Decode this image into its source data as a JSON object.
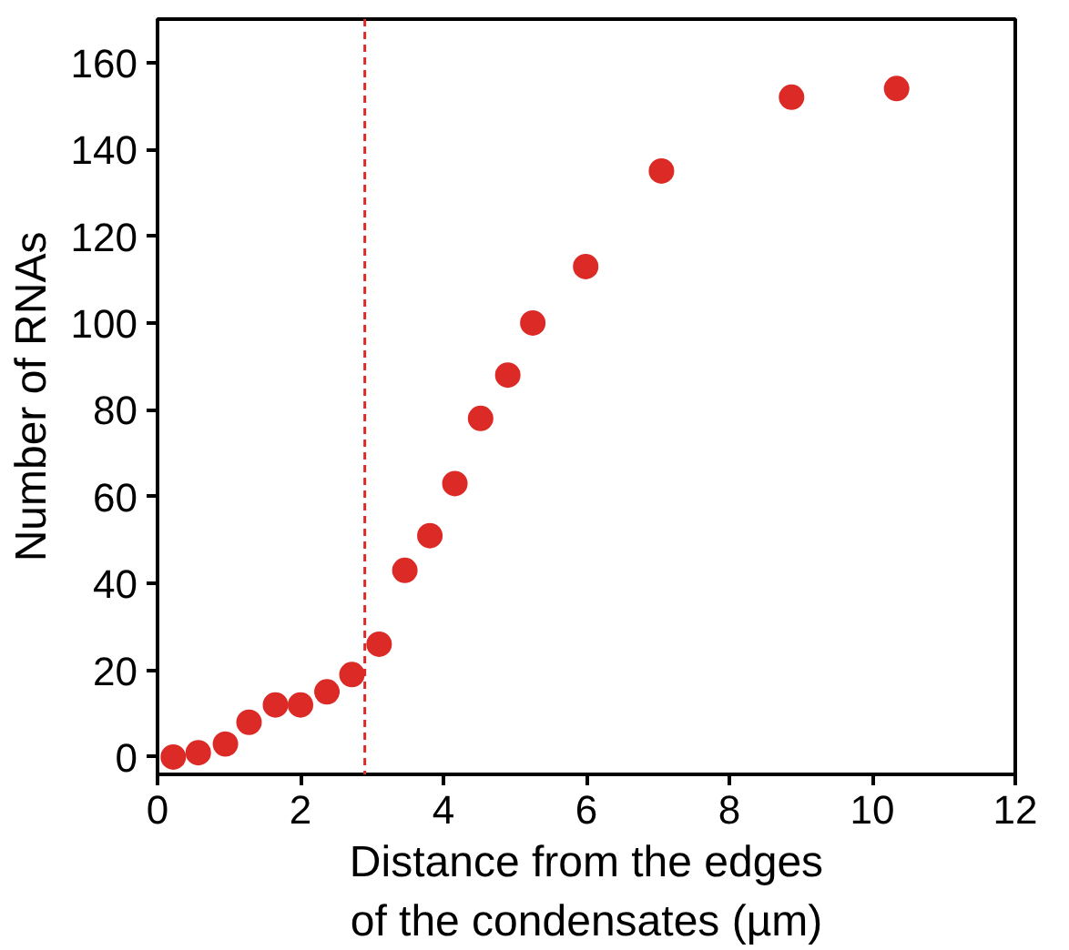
{
  "chart_data": {
    "type": "scatter",
    "xlabel": "Distance from the edges\nof the condensates (µm)",
    "ylabel": "Number of RNAs",
    "x": [
      0.22,
      0.57,
      0.95,
      1.28,
      1.65,
      2.0,
      2.37,
      2.72,
      3.1,
      3.46,
      3.81,
      4.16,
      4.52,
      4.9,
      5.25,
      5.99,
      7.05,
      8.87,
      10.34
    ],
    "series": [
      {
        "color": "#dc2a26",
        "values": [
          0,
          1,
          3,
          8,
          12,
          12,
          15,
          19,
          26,
          43,
          51,
          63,
          78,
          88,
          100,
          113,
          135,
          152,
          154
        ]
      }
    ],
    "xlim": [
      0,
      12
    ],
    "xticks": [
      0,
      2,
      4,
      6,
      8,
      10,
      12
    ],
    "ylim": [
      -4,
      170
    ],
    "yticks": [
      0,
      20,
      40,
      60,
      80,
      100,
      120,
      140,
      160
    ],
    "marker": "circle",
    "ref_lines": [
      {
        "axis": "x",
        "value": 2.9,
        "color": "#dc2a26",
        "line_style": "dashed"
      }
    ]
  }
}
